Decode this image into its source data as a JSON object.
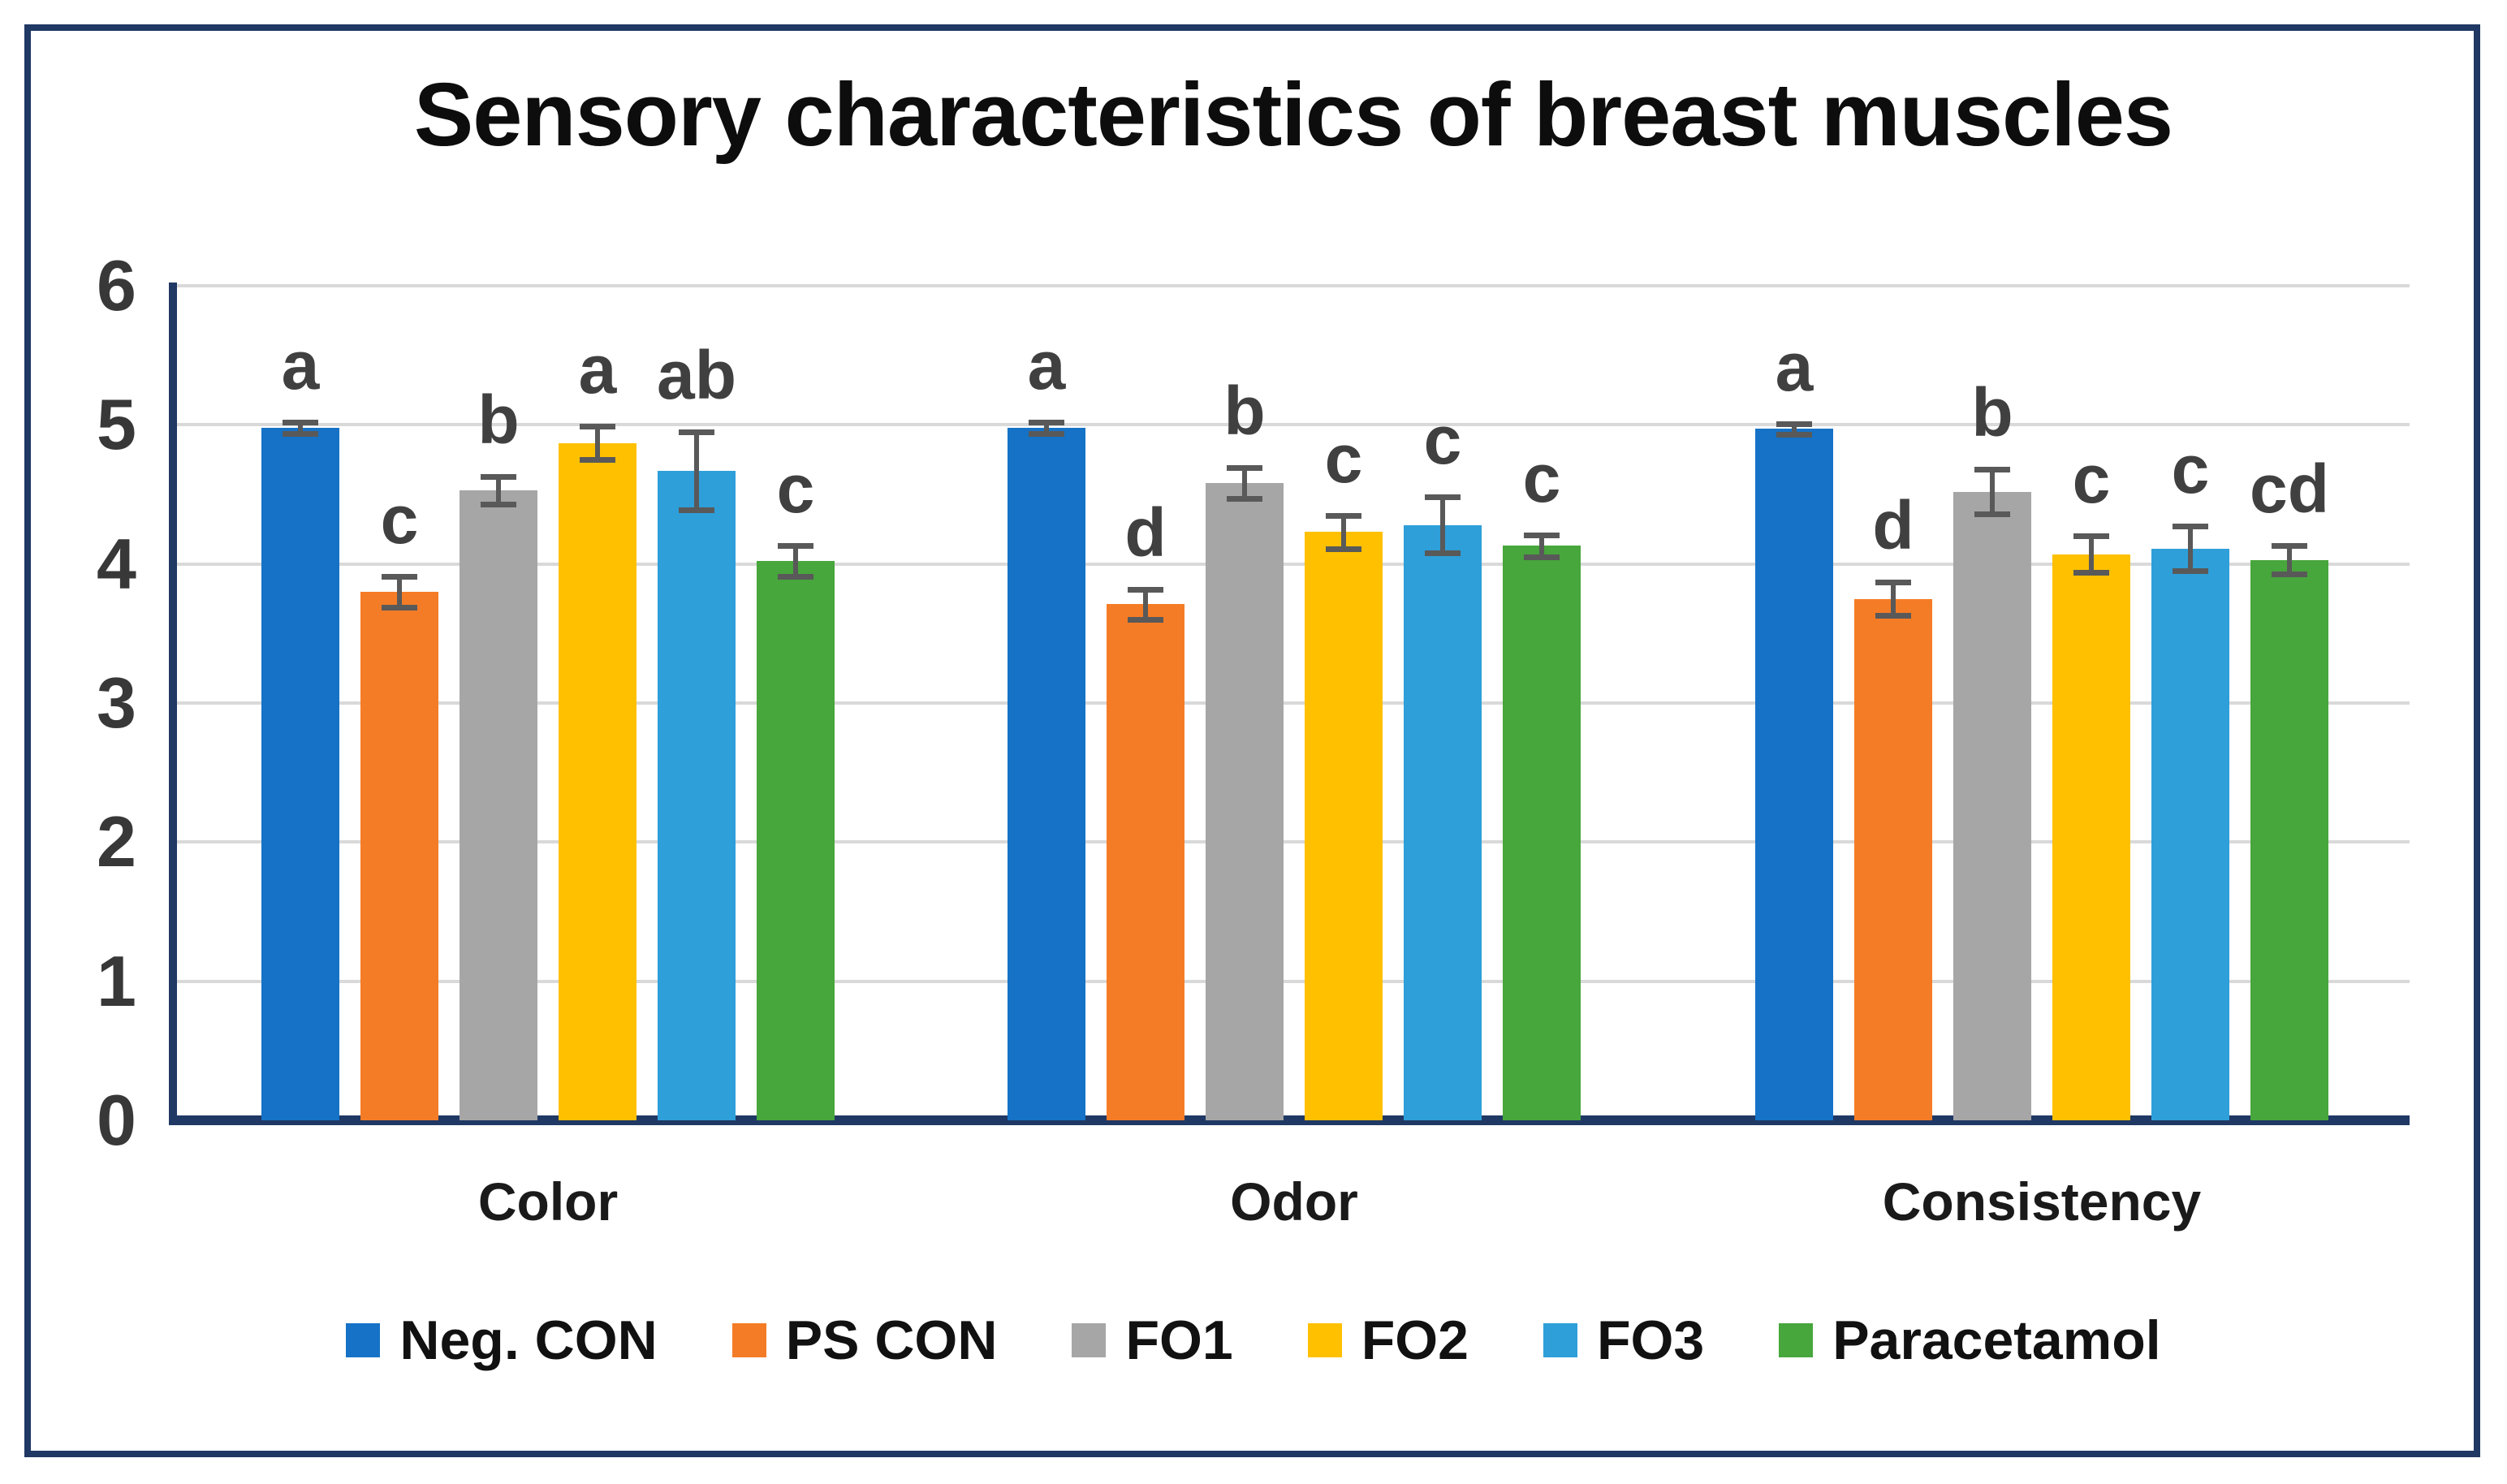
{
  "figure": {
    "title": "Sensory characteristics of breast muscles"
  },
  "chart_data": {
    "type": "bar",
    "title": "Sensory characteristics of breast muscles",
    "xlabel": "",
    "ylabel": "",
    "categories": [
      "Color",
      "Odor",
      "Consistency"
    ],
    "series": [
      {
        "name": "Neg. CON",
        "color": "#1572C6",
        "values": [
          4.98,
          4.98,
          4.97
        ],
        "errors": [
          0.04,
          0.04,
          0.04
        ],
        "letters": [
          "a",
          "a",
          "a"
        ]
      },
      {
        "name": "PS CON",
        "color": "#F57C26",
        "values": [
          3.8,
          3.71,
          3.75
        ],
        "errors": [
          0.11,
          0.11,
          0.12
        ],
        "letters": [
          "c",
          "d",
          "d"
        ]
      },
      {
        "name": "FO1",
        "color": "#A6A6A6",
        "values": [
          4.53,
          4.58,
          4.52
        ],
        "errors": [
          0.1,
          0.11,
          0.16
        ],
        "letters": [
          "b",
          "b",
          "b"
        ]
      },
      {
        "name": "FO2",
        "color": "#FFC000",
        "values": [
          4.87,
          4.23,
          4.07
        ],
        "errors": [
          0.12,
          0.12,
          0.13
        ],
        "letters": [
          "a",
          "c",
          "c"
        ]
      },
      {
        "name": "FO3",
        "color": "#2E9FD9",
        "values": [
          4.67,
          4.28,
          4.11
        ],
        "errors": [
          0.28,
          0.2,
          0.16
        ],
        "letters": [
          "ab",
          "c",
          "c"
        ]
      },
      {
        "name": "Paracetamol",
        "color": "#47A63C",
        "values": [
          4.02,
          4.13,
          4.03
        ],
        "errors": [
          0.11,
          0.08,
          0.1
        ],
        "letters": [
          "c",
          "c",
          "cd"
        ]
      }
    ],
    "ylim": [
      0,
      6
    ],
    "yticks": [
      0,
      1,
      2,
      3,
      4,
      5,
      6
    ],
    "grid": true,
    "legend_position": "bottom",
    "colors": {
      "axis": "#1F3864",
      "gridline": "#D9D9D9",
      "error_bar": "#595959",
      "sig_letter": "#404040",
      "title_text": "#0d0d0d"
    }
  }
}
